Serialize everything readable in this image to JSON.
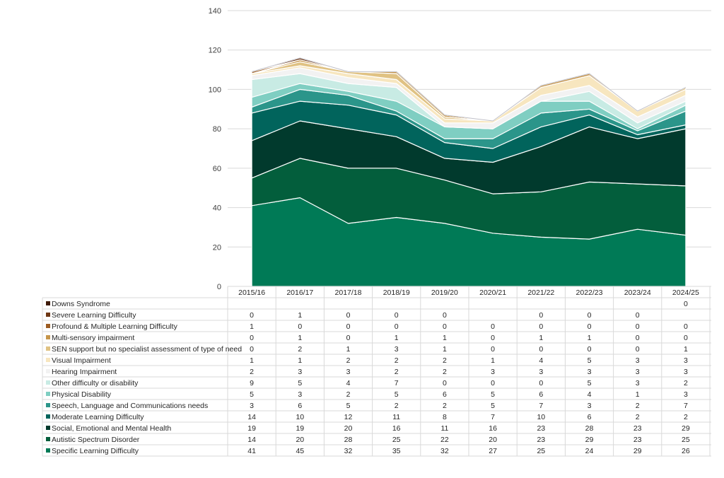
{
  "chart_data": {
    "type": "area",
    "stacked": true,
    "categories": [
      "2015/16",
      "2016/17",
      "2017/18",
      "2018/19",
      "2019/20",
      "2020/21",
      "2021/22",
      "2022/23",
      "2023/24",
      "2024/25"
    ],
    "ylim": [
      0,
      140
    ],
    "yticks": [
      "0",
      "20",
      "40",
      "60",
      "80",
      "100",
      "120",
      "140"
    ],
    "grid": true,
    "legend": "data table below chart",
    "series": [
      {
        "name": "Specific Learning Difficulty",
        "color": "#007a56",
        "values": [
          41,
          45,
          32,
          35,
          32,
          27,
          25,
          24,
          29,
          26
        ],
        "labels": [
          "41",
          "45",
          "32",
          "35",
          "32",
          "27",
          "25",
          "24",
          "29",
          "26"
        ]
      },
      {
        "name": "Autistic Spectrum Disorder",
        "color": "#035e3c",
        "values": [
          14,
          20,
          28,
          25,
          22,
          20,
          23,
          29,
          23,
          25
        ],
        "labels": [
          "14",
          "20",
          "28",
          "25",
          "22",
          "20",
          "23",
          "29",
          "23",
          "25"
        ]
      },
      {
        "name": "Social, Emotional and Mental Health",
        "color": "#013a2d",
        "values": [
          19,
          19,
          20,
          16,
          11,
          16,
          23,
          28,
          23,
          29
        ],
        "labels": [
          "19",
          "19",
          "20",
          "16",
          "11",
          "16",
          "23",
          "28",
          "23",
          "29"
        ]
      },
      {
        "name": "Moderate Learning Difficulty",
        "color": "#01645c",
        "values": [
          14,
          10,
          12,
          11,
          8,
          7,
          10,
          6,
          2,
          2
        ],
        "labels": [
          "14",
          "10",
          "12",
          "11",
          "8",
          "7",
          "10",
          "6",
          "2",
          "2"
        ]
      },
      {
        "name": "Speech, Language and Communications needs",
        "color": "#2b958a",
        "values": [
          3,
          6,
          5,
          2,
          2,
          5,
          7,
          3,
          2,
          7
        ],
        "labels": [
          "3",
          "6",
          "5",
          "2",
          "2",
          "5",
          "7",
          "3",
          "2",
          "7"
        ]
      },
      {
        "name": "Physical Disability",
        "color": "#7fcec2",
        "values": [
          5,
          3,
          2,
          5,
          6,
          5,
          6,
          4,
          1,
          3
        ],
        "labels": [
          "5",
          "3",
          "2",
          "5",
          "6",
          "5",
          "6",
          "4",
          "1",
          "3"
        ]
      },
      {
        "name": "Other difficulty or disability",
        "color": "#c8ebe4",
        "values": [
          9,
          5,
          4,
          7,
          0,
          0,
          0,
          5,
          3,
          2
        ],
        "labels": [
          "9",
          "5",
          "4",
          "7",
          "0",
          "0",
          "0",
          "5",
          "3",
          "2"
        ]
      },
      {
        "name": "Hearing Impairment",
        "color": "#f2f2f2",
        "values": [
          2,
          3,
          3,
          2,
          2,
          3,
          3,
          3,
          3,
          3
        ],
        "labels": [
          "2",
          "3",
          "3",
          "2",
          "2",
          "3",
          "3",
          "3",
          "3",
          "3"
        ]
      },
      {
        "name": "Visual Impairment",
        "color": "#f7e6bf",
        "values": [
          1,
          1,
          2,
          2,
          2,
          1,
          4,
          5,
          3,
          3
        ],
        "labels": [
          "1",
          "1",
          "2",
          "2",
          "2",
          "1",
          "4",
          "5",
          "3",
          "3"
        ]
      },
      {
        "name": "SEN support but no specialist assessment of type of need",
        "color": "#e0c283",
        "values": [
          0,
          2,
          1,
          3,
          1,
          0,
          0,
          0,
          0,
          1
        ],
        "labels": [
          "0",
          "2",
          "1",
          "3",
          "1",
          "0",
          "0",
          "0",
          "0",
          "1"
        ]
      },
      {
        "name": "Multi-sensory impairment",
        "color": "#c6954a",
        "values": [
          0,
          1,
          0,
          1,
          1,
          0,
          1,
          1,
          0,
          0
        ],
        "labels": [
          "0",
          "1",
          "0",
          "1",
          "1",
          "0",
          "1",
          "1",
          "0",
          "0"
        ]
      },
      {
        "name": "Profound & Multiple Learning Difficulty",
        "color": "#9c5c22",
        "values": [
          1,
          0,
          0,
          0,
          0,
          0,
          0,
          0,
          0,
          0
        ],
        "labels": [
          "1",
          "0",
          "0",
          "0",
          "0",
          "0",
          "0",
          "0",
          "0",
          "0"
        ]
      },
      {
        "name": "Severe Learning Difficulty",
        "color": "#6e3614",
        "values": [
          0,
          1,
          0,
          0,
          0,
          null,
          0,
          0,
          0,
          null
        ],
        "labels": [
          "0",
          "1",
          "0",
          "0",
          "0",
          "",
          "0",
          "0",
          "0",
          ""
        ]
      },
      {
        "name": "Downs Syndrome",
        "color": "#3e1a08",
        "values": [
          null,
          null,
          null,
          null,
          null,
          null,
          null,
          null,
          null,
          0
        ],
        "labels": [
          "",
          "",
          "",
          "",
          "",
          "",
          "",
          "",
          "",
          "0"
        ]
      }
    ]
  }
}
